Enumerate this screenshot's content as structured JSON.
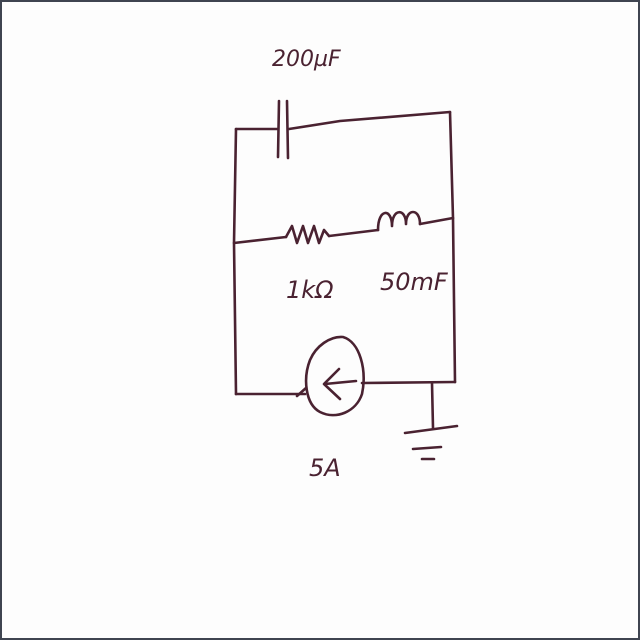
{
  "circuit": {
    "capacitor_label": "200µF",
    "resistor_label": "1kΩ",
    "inductor_label": "50mF",
    "source_label": "5A"
  },
  "colors": {
    "ink": "#4a2231",
    "frame": "#3f4450",
    "paper": "#fdfdfd"
  }
}
